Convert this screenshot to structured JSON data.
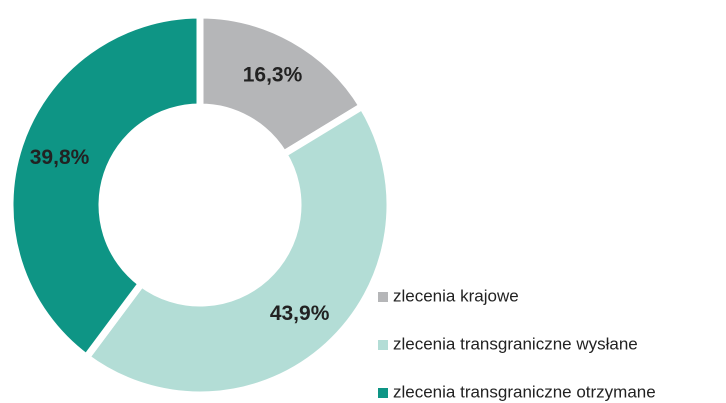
{
  "chart_data": {
    "type": "donut",
    "categories": [
      "zlecenia krajowe",
      "zlecenia transgraniczne wysłane",
      "zlecenia transgraniczne otrzymane"
    ],
    "values": [
      16.3,
      43.9,
      39.8
    ],
    "value_labels": [
      "16,3%",
      "43,9%",
      "39,8%"
    ],
    "colors": [
      "#b5b6b8",
      "#b3ddd6",
      "#0e9585"
    ],
    "legend": "bottom-right"
  }
}
